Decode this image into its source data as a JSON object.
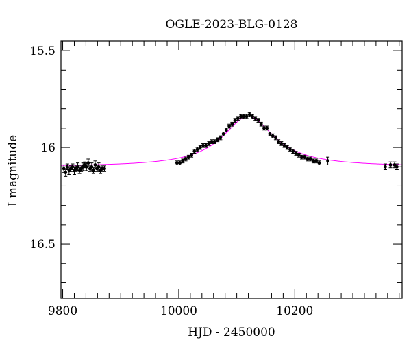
{
  "chart_data": {
    "type": "scatter",
    "title": "OGLE-2023-BLG-0128",
    "xlabel": "HJD - 2450000",
    "ylabel": "I magnitude",
    "xlim": [
      9797,
      10385
    ],
    "ylim": [
      16.78,
      15.45
    ],
    "y_inverted": true,
    "grid": false,
    "x_major_ticks": [
      9800,
      10000,
      10200
    ],
    "y_major_ticks": [
      15.5,
      16,
      16.5
    ],
    "x_tick_labels": [
      "9800",
      "10000",
      "10200"
    ],
    "y_tick_labels": [
      "15.5",
      "16",
      "16.5"
    ],
    "colors": {
      "model": "#ff00ff",
      "points": "#000000"
    },
    "model": {
      "t0": 10120,
      "baseline": 16.1,
      "peak_mag": 15.84,
      "width_days": 55
    },
    "series": [
      {
        "x": [
          9802,
          9805,
          9808,
          9811,
          9814,
          9817,
          9820,
          9823,
          9826,
          9829,
          9832,
          9835,
          9838,
          9841,
          9844,
          9847,
          9850,
          9853,
          9856,
          9859,
          9862,
          9865,
          9868,
          9872,
          9997,
          10002,
          10007,
          10012,
          10017,
          10022,
          10027,
          10032,
          10037,
          10042,
          10047,
          10052,
          10057,
          10062,
          10067,
          10072,
          10077,
          10082,
          10087,
          10092,
          10097,
          10102,
          10107,
          10112,
          10117,
          10122,
          10127,
          10132,
          10137,
          10142,
          10147,
          10152,
          10157,
          10162,
          10167,
          10172,
          10177,
          10182,
          10187,
          10192,
          10197,
          10202,
          10207,
          10212,
          10217,
          10222,
          10227,
          10232,
          10237,
          10242,
          10257,
          10356,
          10365,
          10372,
          10376
        ],
        "y": [
          16.11,
          16.13,
          16.1,
          16.12,
          16.11,
          16.1,
          16.12,
          16.11,
          16.1,
          16.12,
          16.11,
          16.1,
          16.09,
          16.1,
          16.08,
          16.11,
          16.1,
          16.12,
          16.09,
          16.11,
          16.1,
          16.12,
          16.11,
          16.11,
          16.08,
          16.08,
          16.07,
          16.06,
          16.05,
          16.04,
          16.02,
          16.01,
          16.0,
          15.99,
          15.99,
          15.98,
          15.97,
          15.97,
          15.96,
          15.95,
          15.93,
          15.91,
          15.89,
          15.88,
          15.86,
          15.85,
          15.84,
          15.84,
          15.84,
          15.83,
          15.84,
          15.85,
          15.86,
          15.88,
          15.9,
          15.9,
          15.93,
          15.94,
          15.95,
          15.97,
          15.98,
          15.99,
          16.0,
          16.01,
          16.02,
          16.03,
          16.04,
          16.05,
          16.05,
          16.06,
          16.06,
          16.07,
          16.07,
          16.08,
          16.07,
          16.1,
          16.09,
          16.09,
          16.1
        ],
        "error": [
          0.02,
          0.02,
          0.015,
          0.02,
          0.015,
          0.015,
          0.02,
          0.015,
          0.02,
          0.015,
          0.015,
          0.02,
          0.015,
          0.02,
          0.02,
          0.015,
          0.02,
          0.015,
          0.02,
          0.015,
          0.02,
          0.015,
          0.015,
          0.015,
          0.01,
          0.01,
          0.01,
          0.01,
          0.01,
          0.01,
          0.01,
          0.01,
          0.01,
          0.01,
          0.01,
          0.01,
          0.01,
          0.01,
          0.01,
          0.01,
          0.01,
          0.01,
          0.01,
          0.01,
          0.01,
          0.01,
          0.01,
          0.01,
          0.01,
          0.01,
          0.01,
          0.01,
          0.01,
          0.01,
          0.01,
          0.01,
          0.01,
          0.01,
          0.01,
          0.01,
          0.01,
          0.01,
          0.01,
          0.01,
          0.01,
          0.01,
          0.01,
          0.01,
          0.01,
          0.01,
          0.01,
          0.01,
          0.01,
          0.01,
          0.02,
          0.015,
          0.015,
          0.015,
          0.015
        ]
      }
    ]
  }
}
